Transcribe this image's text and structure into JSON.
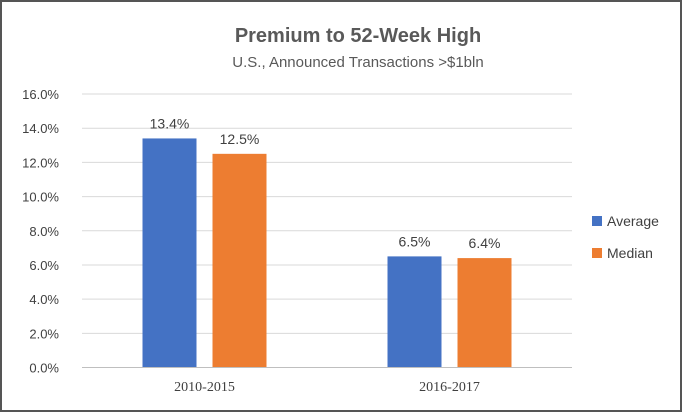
{
  "chart_data": {
    "type": "bar",
    "title": "Premium to 52-Week High",
    "subtitle": "U.S., Announced Transactions >$1bln",
    "categories": [
      "2010-2015",
      "2016-2017"
    ],
    "series": [
      {
        "name": "Average",
        "values": [
          13.4,
          6.5
        ],
        "labels": [
          "13.4%",
          "6.5%"
        ],
        "color": "#4472C4"
      },
      {
        "name": "Median",
        "values": [
          12.5,
          6.4
        ],
        "labels": [
          "12.5%",
          "6.4%"
        ],
        "color": "#ED7D31"
      }
    ],
    "ylim": [
      0,
      16
    ],
    "yticks": [
      0,
      2,
      4,
      6,
      8,
      10,
      12,
      14,
      16
    ],
    "ytick_labels": [
      "0.0%",
      "2.0%",
      "4.0%",
      "6.0%",
      "8.0%",
      "10.0%",
      "12.0%",
      "14.0%",
      "16.0%"
    ],
    "grid": true,
    "legend": "right",
    "xlabel": "",
    "ylabel": ""
  }
}
